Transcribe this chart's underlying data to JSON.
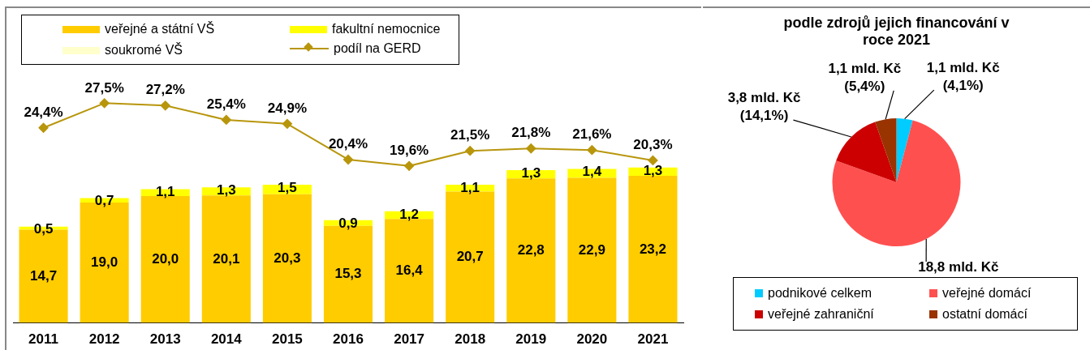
{
  "chart_data": [
    {
      "type": "bar",
      "stacked": true,
      "legend": "top",
      "tick_labels": "x",
      "grid": false,
      "categories": [
        "2011",
        "2012",
        "2013",
        "2014",
        "2015",
        "2016",
        "2017",
        "2018",
        "2019",
        "2020",
        "2021"
      ],
      "series": [
        {
          "name": "veřejné a státní VŠ",
          "color": "#ffcc00",
          "values": [
            14.7,
            19.0,
            20.0,
            20.1,
            20.3,
            15.3,
            16.4,
            20.7,
            22.8,
            22.9,
            23.2
          ],
          "value_labels": [
            "14,7",
            "19,0",
            "20,0",
            "20,1",
            "20,3",
            "15,3",
            "16,4",
            "20,7",
            "22,8",
            "22,9",
            "23,2"
          ]
        },
        {
          "name": "fakultní nemocnice",
          "color": "#ffff00",
          "values": [
            0.5,
            0.7,
            1.1,
            1.3,
            1.5,
            0.9,
            1.2,
            1.1,
            1.3,
            1.4,
            1.3
          ],
          "value_labels": [
            "0,5",
            "0,7",
            "1,1",
            "1,3",
            "1,5",
            "0,9",
            "1,2",
            "1,1",
            "1,3",
            "1,4",
            "1,3"
          ]
        },
        {
          "name": "soukromé VŠ",
          "color": "#ffffcc",
          "values": [
            null,
            null,
            null,
            null,
            null,
            null,
            null,
            null,
            null,
            null,
            null
          ]
        }
      ]
    },
    {
      "type": "line",
      "legend": "top",
      "tick_labels": false,
      "marker": "diamond",
      "categories": [
        "2011",
        "2012",
        "2013",
        "2014",
        "2015",
        "2016",
        "2017",
        "2018",
        "2019",
        "2020",
        "2021"
      ],
      "series": [
        {
          "name": "podíl na GERD",
          "color": "#b8960c",
          "values": [
            24.4,
            27.5,
            27.2,
            25.4,
            24.9,
            20.4,
            19.6,
            21.5,
            21.8,
            21.6,
            20.3
          ],
          "value_labels": [
            "24,4%",
            "27,5%",
            "27,2%",
            "25,4%",
            "24,9%",
            "20,4%",
            "19,6%",
            "21,5%",
            "21,8%",
            "21,6%",
            "20,3%"
          ]
        }
      ]
    },
    {
      "type": "pie",
      "title": "podle zdrojů jejich financování v roce 2021",
      "legend": "bottom",
      "categories": [
        "podnikové celkem",
        "veřejné domácí",
        "veřejné zahraniční",
        "ostatní domácí"
      ],
      "values": [
        4.1,
        76.4,
        14.1,
        5.4
      ],
      "colors": [
        "#00ccff",
        "#ff5050",
        "#cc0000",
        "#993300"
      ],
      "value_labels": [
        "1,1 mld. Kč\n(4,1%)",
        "18,8 mld. Kč\n(76,4%)",
        "3,8 mld. Kč\n(14,1%)",
        "1,1 mld. Kč\n(5,4%)"
      ]
    }
  ]
}
